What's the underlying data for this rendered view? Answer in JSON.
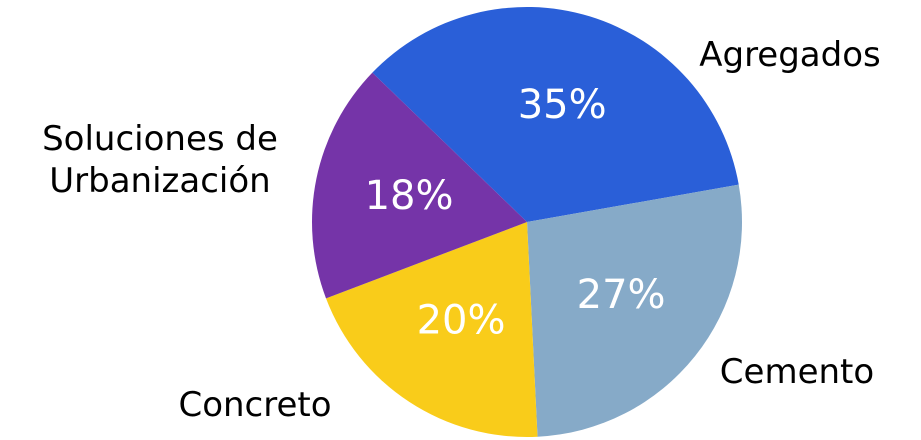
{
  "chart_data": {
    "type": "pie",
    "categories": [
      "Agregados",
      "Cemento",
      "Concreto",
      "Soluciones de Urbanización"
    ],
    "values": [
      35,
      27,
      20,
      18
    ],
    "value_labels": [
      "35%",
      "27%",
      "20%",
      "18%"
    ],
    "colors": [
      "#2a5fd8",
      "#86aac8",
      "#f9cc1a",
      "#7534a8"
    ]
  }
}
